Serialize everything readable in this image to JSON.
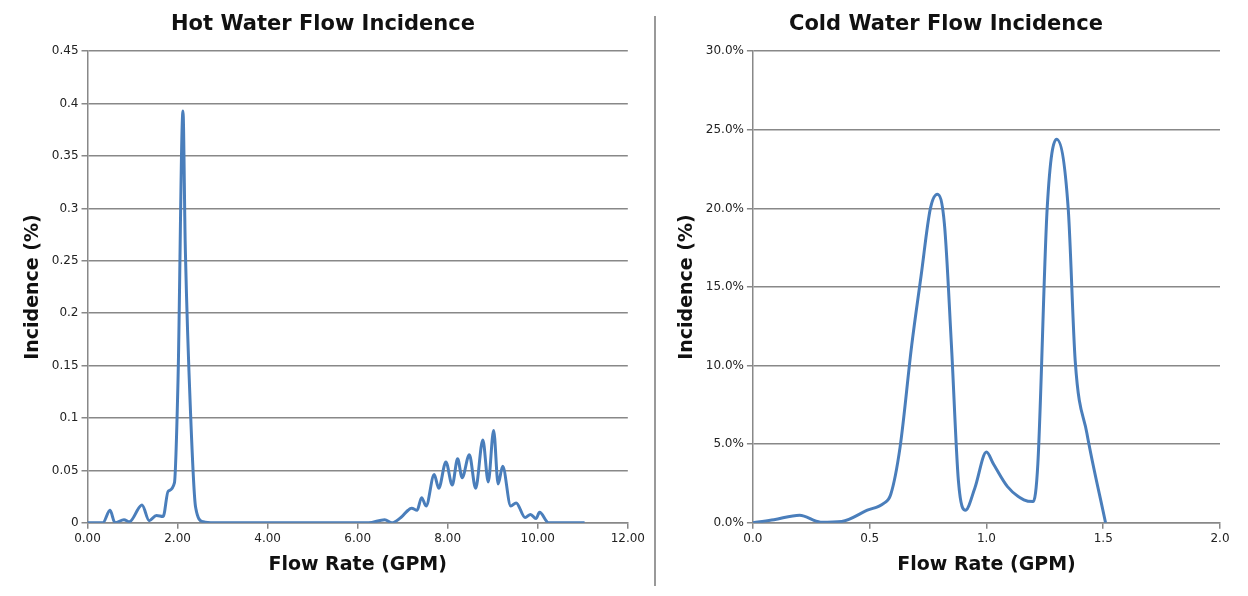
{
  "chart_data": [
    {
      "type": "line",
      "title": "Hot Water Flow Incidence",
      "xlabel": "Flow Rate (GPM)",
      "ylabel": "Incidence (%)",
      "grid": "y",
      "line_style": "solid",
      "marker": "none",
      "xlim": [
        0,
        12
      ],
      "xticks": [
        {
          "value": 0,
          "label": "0.00"
        },
        {
          "value": 2,
          "label": "2.00"
        },
        {
          "value": 4,
          "label": "4.00"
        },
        {
          "value": 6,
          "label": "6.00"
        },
        {
          "value": 8,
          "label": "8.00"
        },
        {
          "value": 10,
          "label": "10.00"
        },
        {
          "value": 12,
          "label": "12.00"
        }
      ],
      "ylim": [
        0,
        0.45
      ],
      "yticks": [
        0,
        0.05,
        0.1,
        0.15,
        0.2,
        0.25,
        0.3,
        0.35,
        0.4,
        0.45
      ],
      "series": [
        {
          "color": "#4a7ebb",
          "x": [
            0,
            0.34,
            0.5,
            0.61,
            0.81,
            0.93,
            1.21,
            1.37,
            1.53,
            1.68,
            1.79,
            1.93,
            2.01,
            2.12,
            2.17,
            2.29,
            2.4,
            2.57,
            2.81,
            6.24,
            6.6,
            6.76,
            6.96,
            7.2,
            7.32,
            7.42,
            7.52,
            7.7,
            7.8,
            7.96,
            8.1,
            8.22,
            8.32,
            8.48,
            8.62,
            8.78,
            8.9,
            9.02,
            9.12,
            9.22,
            9.4,
            9.52,
            9.72,
            9.84,
            9.96,
            10.04,
            10.24,
            11.04
          ],
          "values": [
            0,
            0,
            0.012,
            0,
            0.003,
            0.001,
            0.017,
            0.002,
            0.007,
            0.006,
            0.03,
            0.038,
            0.136,
            0.393,
            0.266,
            0.103,
            0.015,
            0.001,
            0,
            0,
            0.003,
            0,
            0.005,
            0.014,
            0.012,
            0.024,
            0.016,
            0.046,
            0.033,
            0.058,
            0.036,
            0.061,
            0.043,
            0.065,
            0.033,
            0.079,
            0.039,
            0.088,
            0.037,
            0.054,
            0.016,
            0.019,
            0.005,
            0.008,
            0.004,
            0.01,
            0,
            0
          ]
        }
      ]
    },
    {
      "type": "line",
      "title": "Cold Water Flow Incidence",
      "xlabel": "Flow Rate (GPM)",
      "ylabel": "Incidence (%)",
      "grid": "y",
      "line_style": "solid",
      "marker": "none",
      "xlim": [
        0,
        2
      ],
      "xticks": [
        {
          "value": 0,
          "label": "0.0"
        },
        {
          "value": 0.5,
          "label": "0.5"
        },
        {
          "value": 1,
          "label": "1.0"
        },
        {
          "value": 1.5,
          "label": "1.5"
        },
        {
          "value": 2,
          "label": "2.0"
        }
      ],
      "ylim": [
        0,
        30
      ],
      "yticks": [
        {
          "value": 0,
          "label": "0.0%"
        },
        {
          "value": 5,
          "label": "5.0%"
        },
        {
          "value": 10,
          "label": "10.0%"
        },
        {
          "value": 15,
          "label": "15.0%"
        },
        {
          "value": 20,
          "label": "20.0%"
        },
        {
          "value": 25,
          "label": "25.0%"
        },
        {
          "value": 30,
          "label": "30.0%"
        }
      ],
      "series": [
        {
          "color": "#4a7ebb",
          "x": [
            0,
            0.09,
            0.2,
            0.29,
            0.38,
            0.49,
            0.56,
            0.59,
            0.63,
            0.68,
            0.72,
            0.76,
            0.79,
            0.82,
            0.85,
            0.88,
            0.91,
            0.95,
            1.0,
            1.03,
            1.09,
            1.16,
            1.2,
            1.22,
            1.26,
            1.3,
            1.35,
            1.38,
            1.43,
            1.51
          ],
          "values": [
            0,
            0.2,
            0.48,
            0.04,
            0.09,
            0.8,
            1.24,
            1.8,
            4.8,
            11.3,
            15.7,
            20,
            20.9,
            19,
            11.3,
            2.65,
            0.8,
            2.2,
            4.5,
            3.74,
            2.3,
            1.46,
            1.35,
            3.74,
            20,
            24.4,
            20,
            10.3,
            5.7,
            0
          ]
        }
      ]
    }
  ]
}
